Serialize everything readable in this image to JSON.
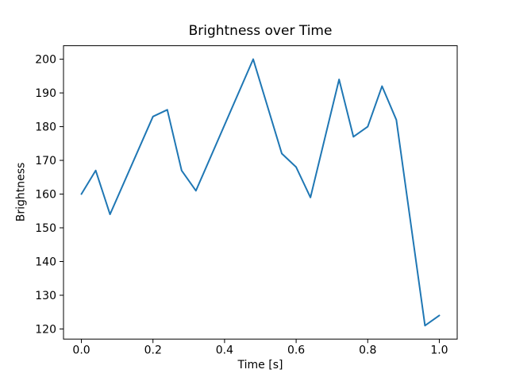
{
  "chart_data": {
    "type": "line",
    "title": "Brightness over Time",
    "xlabel": "Time [s]",
    "ylabel": "Brightness",
    "series": [
      {
        "name": "brightness",
        "color": "#1f77b4",
        "x": [
          0.0,
          0.04,
          0.08,
          0.2,
          0.24,
          0.28,
          0.32,
          0.48,
          0.56,
          0.6,
          0.64,
          0.72,
          0.76,
          0.8,
          0.84,
          0.88,
          0.96,
          1.0
        ],
        "y": [
          160,
          167,
          154,
          183,
          185,
          167,
          161,
          200,
          172,
          168,
          159,
          194,
          177,
          180,
          192,
          182,
          121,
          124
        ]
      }
    ],
    "xlim": [
      -0.05,
      1.05
    ],
    "ylim": [
      117,
      204
    ],
    "xticks": {
      "values": [
        0.0,
        0.2,
        0.4,
        0.6,
        0.8,
        1.0
      ],
      "labels": [
        "0.0",
        "0.2",
        "0.4",
        "0.6",
        "0.8",
        "1.0"
      ]
    },
    "yticks": {
      "values": [
        120,
        130,
        140,
        150,
        160,
        170,
        180,
        190,
        200
      ],
      "labels": [
        "120",
        "130",
        "140",
        "150",
        "160",
        "170",
        "180",
        "190",
        "200"
      ]
    },
    "grid": false,
    "legend_position": "none",
    "axes_color": "#000000",
    "background_color": "#ffffff"
  }
}
